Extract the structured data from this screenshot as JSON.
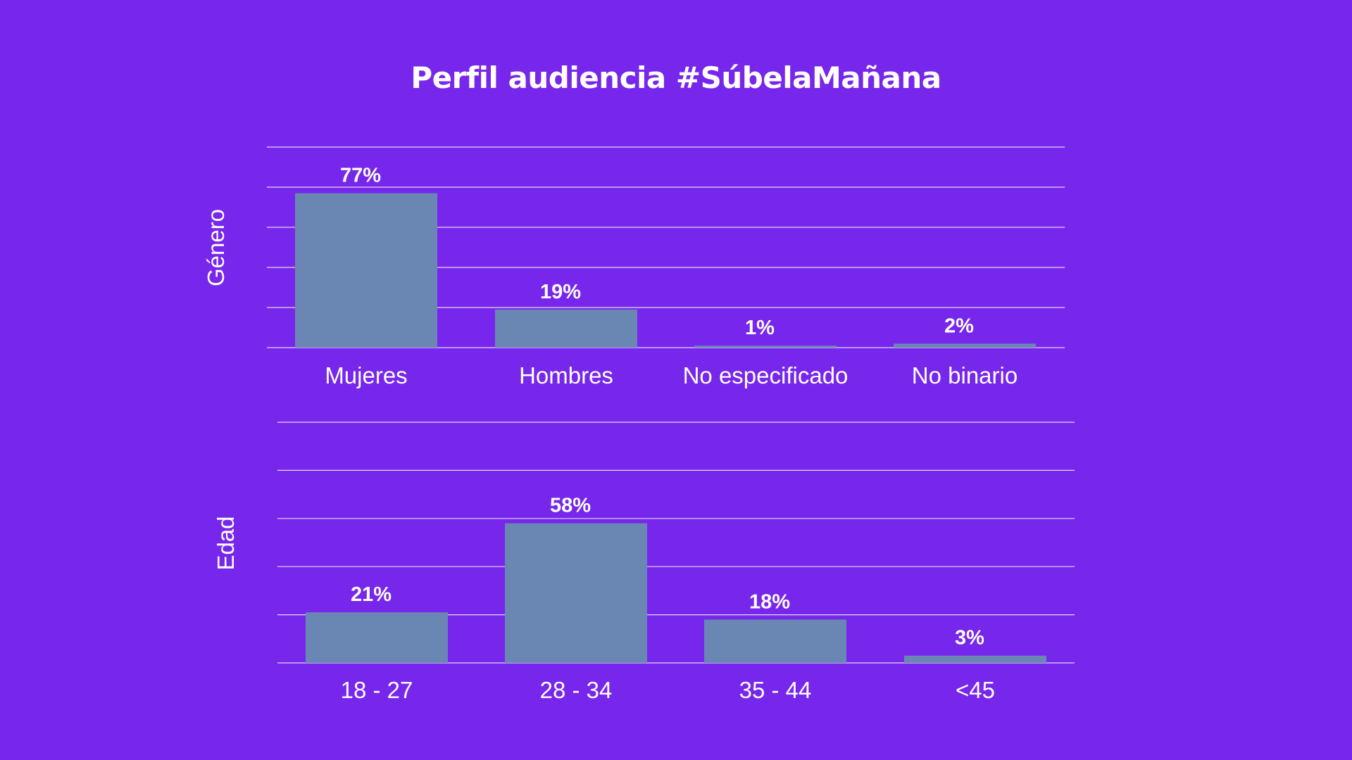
{
  "title": "Perfil audiencia #SúbelaMañana",
  "colors": {
    "background": "#7726EC",
    "bar": "#6A87B3",
    "gridline": "#E6DAF8",
    "text": "#FFFFFF"
  },
  "chart_data": [
    {
      "type": "bar",
      "ylabel": "Género",
      "categories": [
        "Mujeres",
        "Hombres",
        "No especificado",
        "No binario"
      ],
      "values": [
        77,
        19,
        1,
        2
      ],
      "value_labels": [
        "77%",
        "19%",
        "1%",
        "2%"
      ],
      "ylim": [
        0,
        100
      ],
      "grid": true
    },
    {
      "type": "bar",
      "ylabel": "Edad",
      "categories": [
        "18 - 27",
        "28 - 34",
        "35 - 44",
        "<45"
      ],
      "values": [
        21,
        58,
        18,
        3
      ],
      "value_labels": [
        "21%",
        "58%",
        "18%",
        "3%"
      ],
      "ylim": [
        0,
        100
      ],
      "grid": true
    }
  ]
}
